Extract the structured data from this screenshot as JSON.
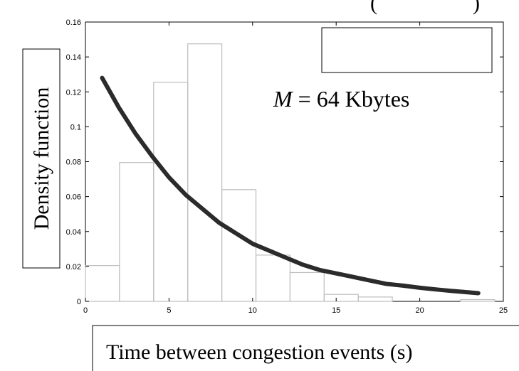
{
  "chart_data": {
    "type": "bar",
    "title_partial": "(",
    "title_partial_right": ")",
    "annotation_var": "M",
    "annotation_rest": " = 64 Kbytes",
    "xlabel": "Time between congestion events (s)",
    "ylabel": "Density function",
    "xlim": [
      0,
      25
    ],
    "ylim": [
      0,
      0.16
    ],
    "x_ticks": [
      0,
      5,
      10,
      15,
      20,
      25
    ],
    "y_ticks": [
      0,
      0.02,
      0.04,
      0.06,
      0.08,
      0.1,
      0.12,
      0.14,
      0.16
    ],
    "histogram": {
      "bin_edges": [
        0,
        2.04,
        4.08,
        6.12,
        8.16,
        10.2,
        12.24,
        14.28,
        16.32,
        18.36,
        20.4,
        22.44,
        24.48
      ],
      "values": [
        0.0205,
        0.0795,
        0.1255,
        0.1475,
        0.064,
        0.0265,
        0.0165,
        0.004,
        0.0025,
        0.0,
        0.0,
        0.001
      ]
    },
    "series": [
      {
        "type": "line",
        "x": [
          1,
          2,
          3,
          4,
          5,
          6,
          7,
          8,
          9,
          10,
          11,
          12,
          13,
          14,
          15,
          16,
          17,
          18,
          19,
          20,
          21,
          22,
          23,
          23.5
        ],
        "values": [
          0.128,
          0.111,
          0.096,
          0.083,
          0.071,
          0.061,
          0.053,
          0.045,
          0.039,
          0.033,
          0.029,
          0.025,
          0.021,
          0.018,
          0.016,
          0.014,
          0.012,
          0.01,
          0.009,
          0.0078,
          0.0068,
          0.0059,
          0.0051,
          0.0047
        ]
      }
    ],
    "legend": {
      "position": "top-right",
      "entries": []
    },
    "colors": {
      "bars": "#bdbdbd",
      "curve": "#2b2b2b",
      "axis": "#000000"
    }
  }
}
